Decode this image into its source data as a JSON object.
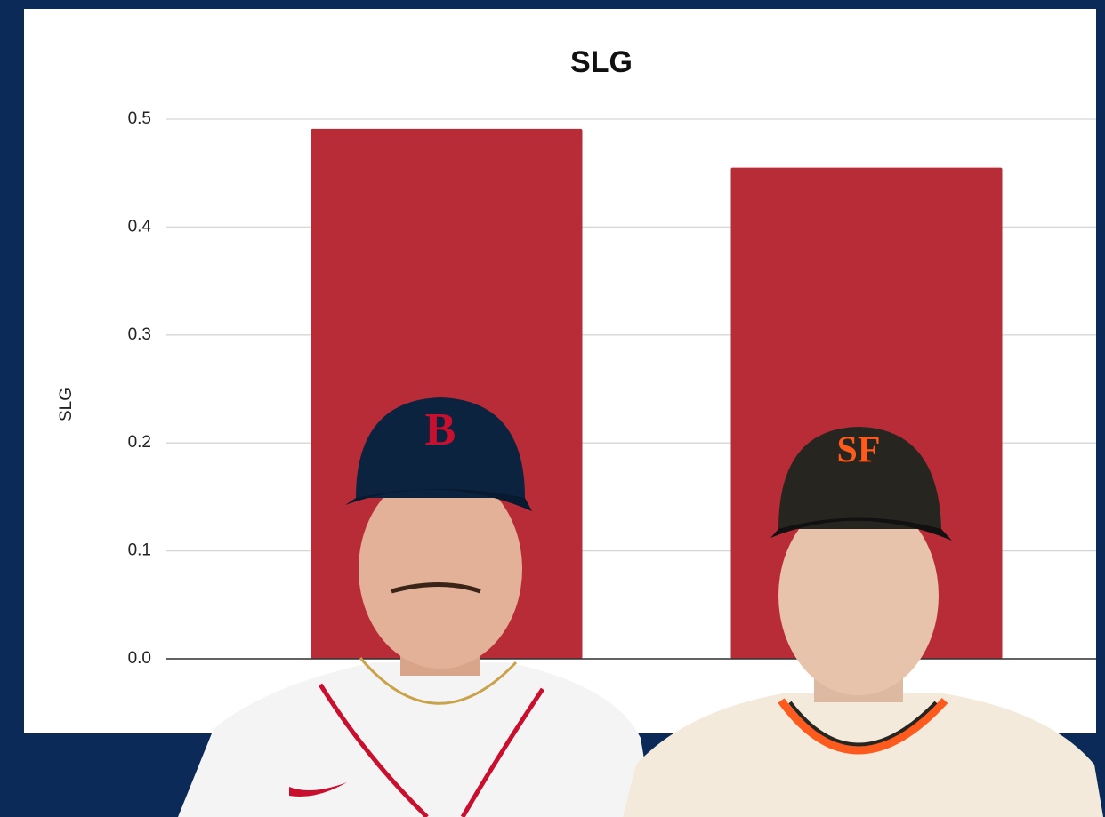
{
  "chart_data": {
    "type": "bar",
    "title": "SLG",
    "y_label": "SLG",
    "categories": [
      null,
      null
    ],
    "values": [
      0.491,
      0.455
    ],
    "color": "#b82c38",
    "ylim": [
      0,
      0.5
    ],
    "yticks": [
      {
        "value": 0,
        "label": "0.0"
      },
      0.1,
      0.2,
      0.3,
      0.4,
      0.5
    ],
    "grid": true
  }
}
